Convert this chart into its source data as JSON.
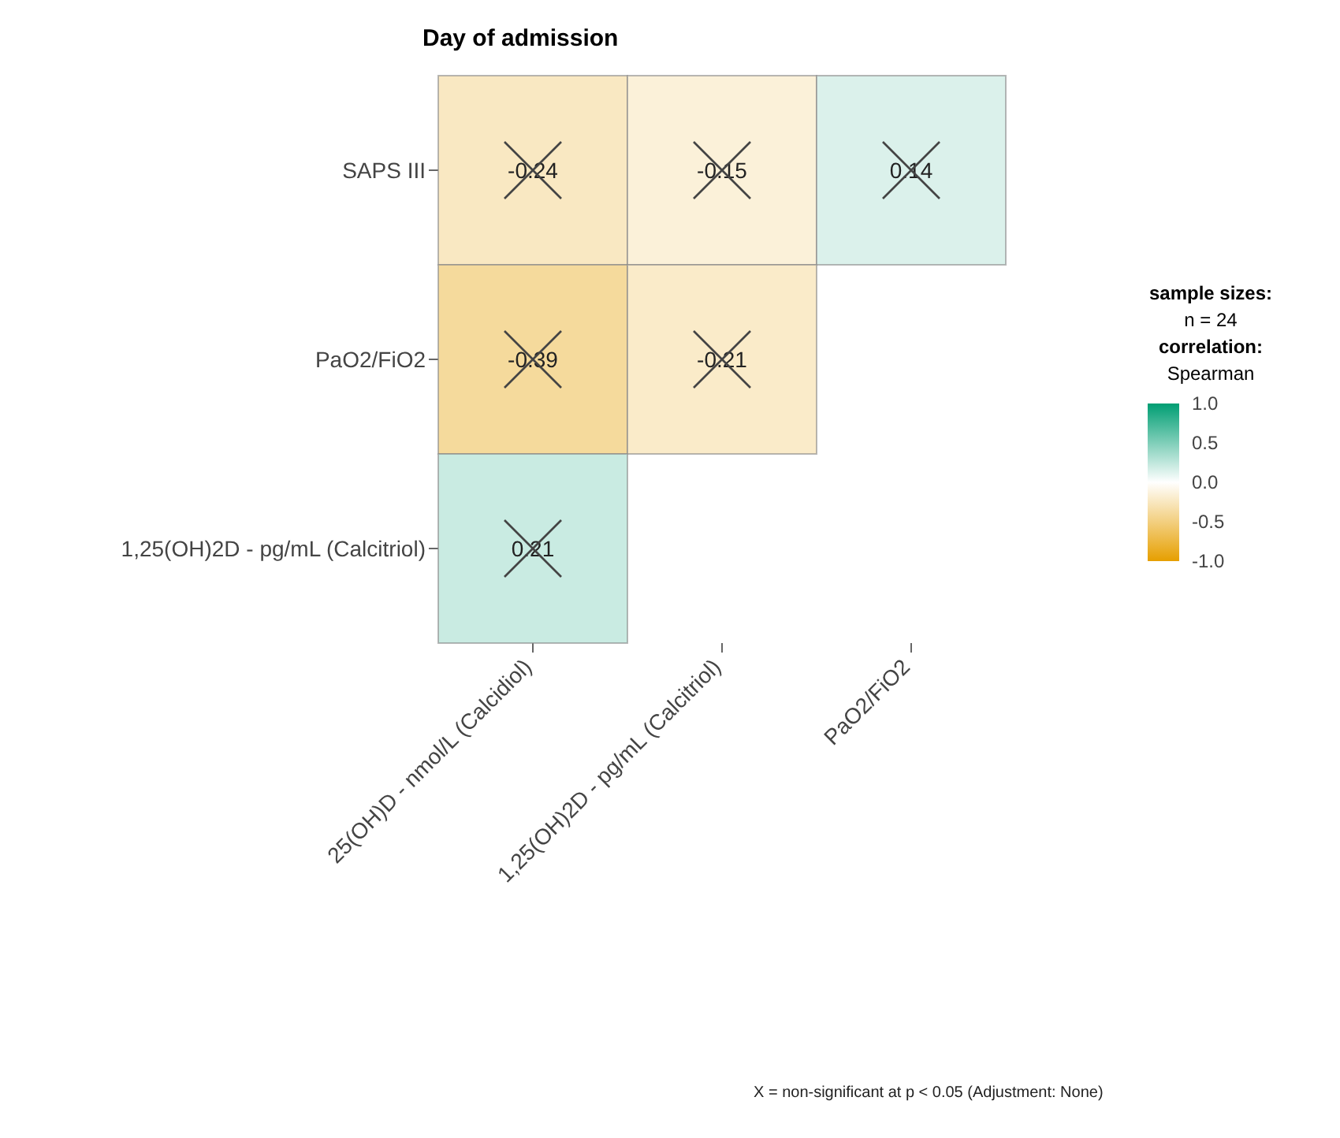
{
  "chart_data": {
    "type": "heatmap",
    "title": "Day of admission",
    "categories": [
      "25(OH)D - nmol/L (Calcidiol)",
      "1,25(OH)2D - pg/mL (Calcitriol)",
      "PaO2/FiO2"
    ],
    "y_categories": [
      "SAPS III",
      "PaO2/FiO2",
      "1,25(OH)2D - pg/mL (Calcitriol)"
    ],
    "cells": [
      [
        -0.24,
        -0.15,
        0.14
      ],
      [
        -0.39,
        -0.21,
        null
      ],
      [
        0.21,
        null,
        null
      ]
    ],
    "data_labels": true,
    "clim": [
      -1,
      1
    ],
    "cticks": [
      {
        "value": 1,
        "label": "1.0"
      },
      0.5,
      {
        "value": 0,
        "label": "0.0"
      },
      -0.5,
      {
        "value": -1,
        "label": "-1.0"
      }
    ],
    "annotations": [
      "sample sizes:",
      "n = 24",
      "correlation:",
      "Spearman",
      "X = non-significant at p < 0.05 (Adjustment: None)"
    ]
  }
}
